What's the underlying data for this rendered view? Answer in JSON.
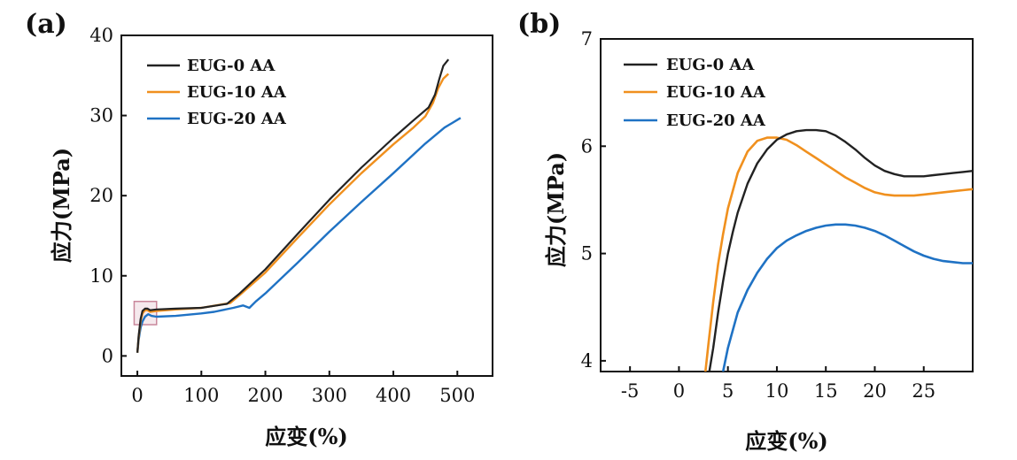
{
  "chart_data": [
    {
      "type": "line",
      "panel_label": "(a)",
      "xlabel": "应变(%)",
      "ylabel": "应力(MPa)",
      "xlim": [
        -25,
        555
      ],
      "ylim": [
        -2.5,
        40
      ],
      "xticks": [
        "0",
        "100",
        "200",
        "300",
        "400",
        "500"
      ],
      "xtick_values": [
        0,
        100,
        200,
        300,
        400,
        500
      ],
      "yticks": [
        "0",
        "10",
        "20",
        "30",
        "40"
      ],
      "ytick_values": [
        0,
        10,
        20,
        30,
        40
      ],
      "legend_position": "top-left",
      "highlight_box": {
        "x": [
          -5,
          30
        ],
        "y": [
          3.9,
          6.8
        ],
        "color": "#c9879b"
      },
      "series": [
        {
          "name": "EUG-0 AA",
          "color": "#222222",
          "x": [
            0,
            2,
            5,
            8,
            12,
            16,
            20,
            30,
            60,
            100,
            140,
            160,
            200,
            250,
            300,
            350,
            400,
            430,
            455,
            465,
            472,
            478,
            486
          ],
          "y": [
            0.4,
            2.5,
            4.6,
            5.6,
            5.9,
            5.9,
            5.7,
            5.8,
            5.9,
            6.0,
            6.5,
            7.8,
            10.8,
            15.2,
            19.5,
            23.5,
            27.2,
            29.3,
            31.0,
            32.6,
            34.6,
            36.2,
            37.0
          ]
        },
        {
          "name": "EUG-10 AA",
          "color": "#f0901e",
          "x": [
            0,
            2,
            5,
            8,
            12,
            16,
            20,
            30,
            60,
            100,
            145,
            160,
            200,
            250,
            300,
            350,
            400,
            430,
            450,
            462,
            470,
            478,
            486
          ],
          "y": [
            0.4,
            2.3,
            4.3,
            5.3,
            5.7,
            5.7,
            5.5,
            5.6,
            5.8,
            6.0,
            6.6,
            7.6,
            10.4,
            14.7,
            18.9,
            22.8,
            26.4,
            28.4,
            29.9,
            31.6,
            33.4,
            34.6,
            35.2
          ]
        },
        {
          "name": "EUG-20 AA",
          "color": "#1f72c4",
          "x": [
            0,
            2,
            5,
            8,
            12,
            17,
            22,
            30,
            60,
            100,
            120,
            150,
            165,
            175,
            185,
            200,
            250,
            300,
            350,
            400,
            450,
            480,
            505
          ],
          "y": [
            0.4,
            2.0,
            3.5,
            4.3,
            4.9,
            5.2,
            5.0,
            4.9,
            5.0,
            5.3,
            5.5,
            6.0,
            6.3,
            6.0,
            6.8,
            7.8,
            11.6,
            15.5,
            19.2,
            22.8,
            26.5,
            28.5,
            29.7
          ]
        }
      ]
    },
    {
      "type": "line",
      "panel_label": "(b)",
      "xlabel": "应变(%)",
      "ylabel": "应力(MPa)",
      "xlim": [
        -8,
        30
      ],
      "ylim": [
        3.9,
        7.0
      ],
      "xticks": [
        "-5",
        "0",
        "5",
        "10",
        "15",
        "20",
        "25"
      ],
      "xtick_values": [
        -5,
        0,
        5,
        10,
        15,
        20,
        25
      ],
      "yticks": [
        "4",
        "5",
        "6",
        "7"
      ],
      "ytick_values": [
        4,
        5,
        6,
        7
      ],
      "legend_position": "top-left",
      "series": [
        {
          "name": "EUG-0 AA",
          "color": "#222222",
          "x": [
            3.1,
            3.5,
            4,
            4.5,
            5,
            5.5,
            6,
            7,
            8,
            9,
            10,
            11,
            12,
            13,
            14,
            15,
            16,
            17,
            18,
            19,
            20,
            21,
            22,
            23,
            24,
            25,
            26,
            27,
            28,
            29,
            30
          ],
          "y": [
            3.9,
            4.12,
            4.45,
            4.74,
            5.0,
            5.2,
            5.38,
            5.65,
            5.84,
            5.97,
            6.06,
            6.11,
            6.14,
            6.15,
            6.15,
            6.14,
            6.1,
            6.04,
            5.97,
            5.89,
            5.82,
            5.77,
            5.74,
            5.72,
            5.72,
            5.72,
            5.73,
            5.74,
            5.75,
            5.76,
            5.77
          ]
        },
        {
          "name": "EUG-10 AA",
          "color": "#f0901e",
          "x": [
            2.7,
            3,
            3.5,
            4,
            4.5,
            5,
            6,
            7,
            8,
            9,
            10,
            11,
            12,
            13,
            14,
            15,
            16,
            17,
            18,
            19,
            20,
            21,
            22,
            23,
            24,
            25,
            26,
            27,
            28,
            29,
            30
          ],
          "y": [
            3.9,
            4.15,
            4.55,
            4.9,
            5.18,
            5.42,
            5.75,
            5.95,
            6.05,
            6.08,
            6.08,
            6.06,
            6.01,
            5.95,
            5.89,
            5.83,
            5.77,
            5.71,
            5.66,
            5.61,
            5.57,
            5.55,
            5.54,
            5.54,
            5.54,
            5.55,
            5.56,
            5.57,
            5.58,
            5.59,
            5.6
          ]
        },
        {
          "name": "EUG-20 AA",
          "color": "#1f72c4",
          "x": [
            4.5,
            5,
            6,
            7,
            8,
            9,
            10,
            11,
            12,
            13,
            14,
            15,
            16,
            17,
            18,
            19,
            20,
            21,
            22,
            23,
            24,
            25,
            26,
            27,
            28,
            29,
            30
          ],
          "y": [
            3.9,
            4.12,
            4.45,
            4.66,
            4.82,
            4.95,
            5.05,
            5.12,
            5.17,
            5.21,
            5.24,
            5.26,
            5.27,
            5.27,
            5.26,
            5.24,
            5.21,
            5.17,
            5.12,
            5.07,
            5.02,
            4.98,
            4.95,
            4.93,
            4.92,
            4.91,
            4.91
          ]
        }
      ]
    }
  ]
}
